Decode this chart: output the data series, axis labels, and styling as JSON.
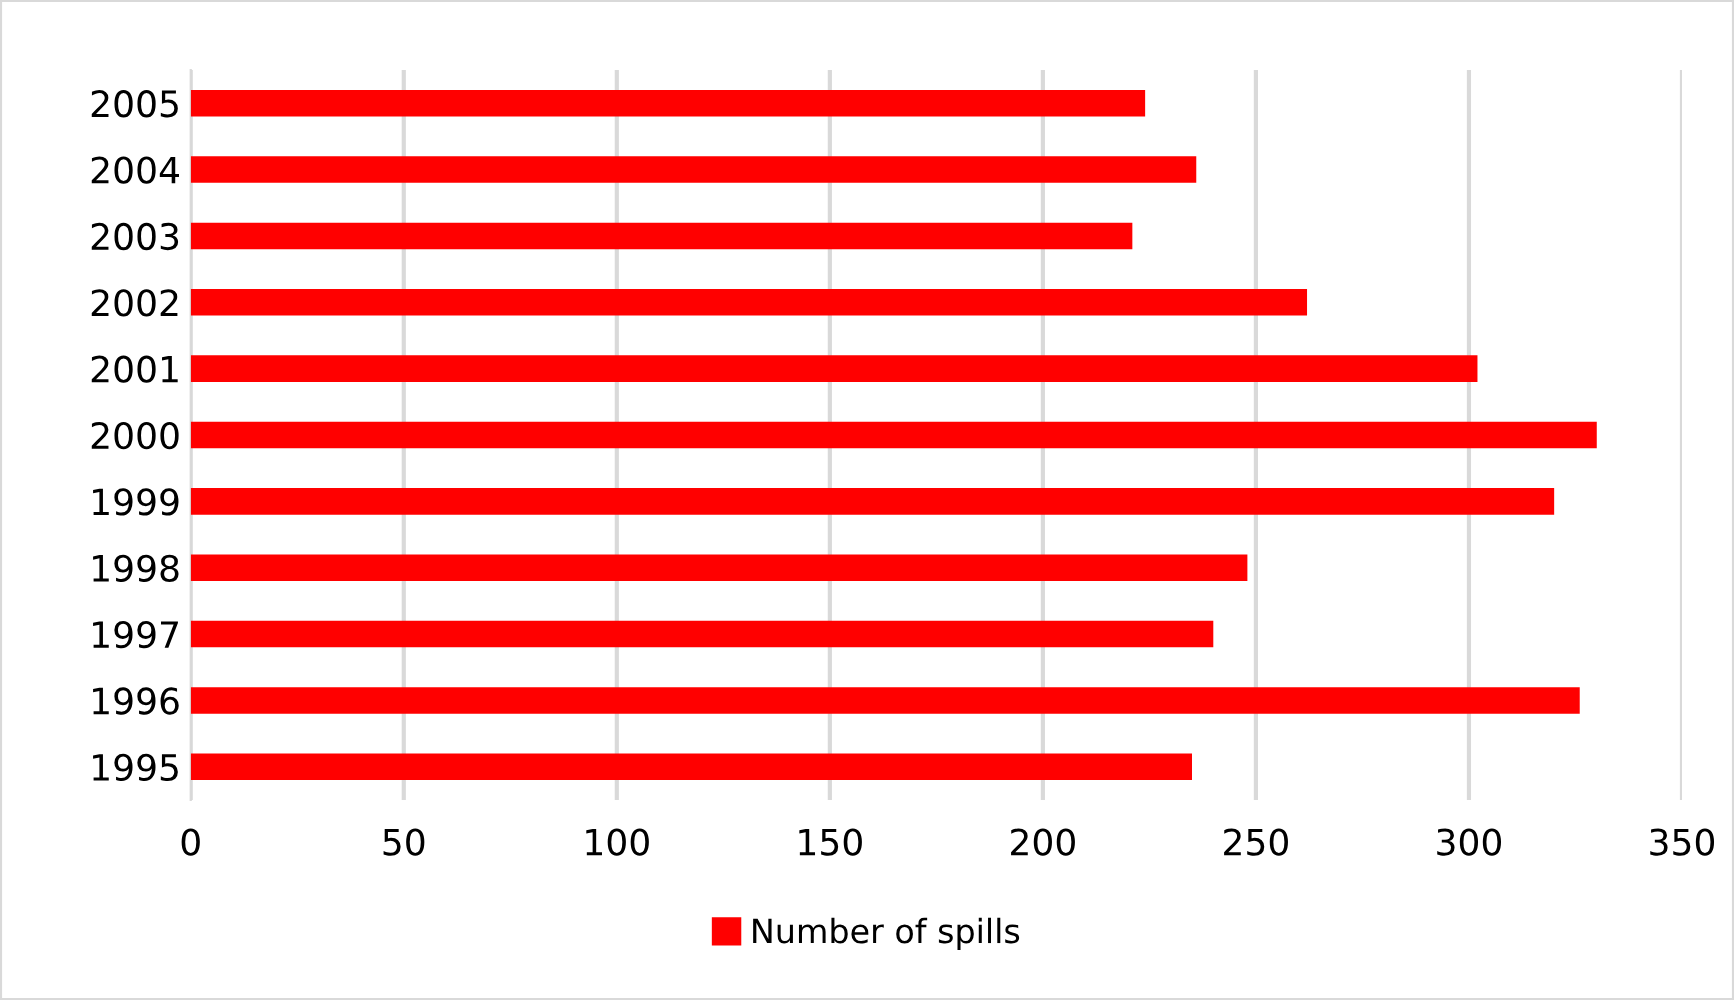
{
  "chart_data": {
    "type": "bar",
    "orientation": "horizontal",
    "categories": [
      "2005",
      "2004",
      "2003",
      "2002",
      "2001",
      "2000",
      "1999",
      "1998",
      "1997",
      "1996",
      "1995"
    ],
    "series": [
      {
        "name": "Number of spills",
        "color": "#ff0000",
        "values": [
          224,
          236,
          221,
          262,
          302,
          330,
          320,
          248,
          240,
          326,
          235
        ]
      }
    ],
    "xlim": [
      0,
      350
    ],
    "xticks": [
      0,
      50,
      100,
      150,
      200,
      250,
      300,
      350
    ],
    "grid": "x",
    "legend": "bottom"
  }
}
